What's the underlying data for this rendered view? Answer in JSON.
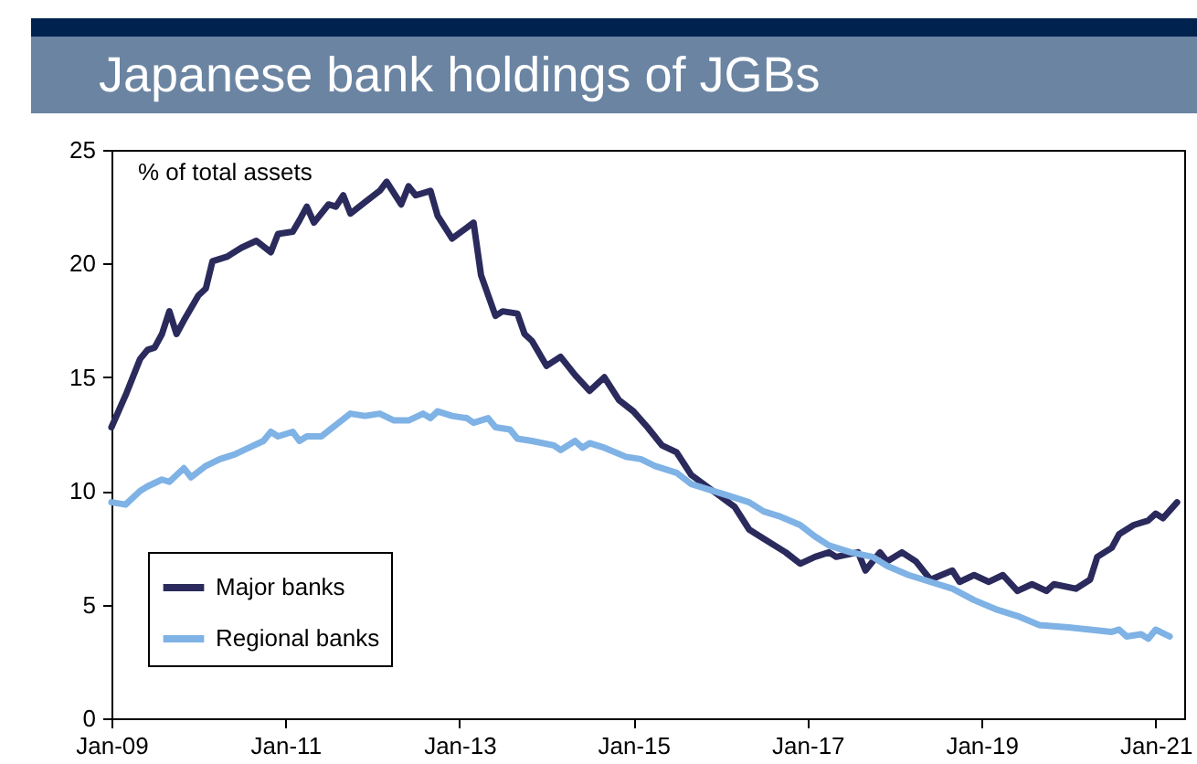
{
  "chart_data": {
    "type": "line",
    "title": "Japanese bank holdings of JGBs",
    "ylabel": "% of total assets",
    "xlim": [
      "2009-01",
      "2021-05"
    ],
    "ylim": [
      0,
      25
    ],
    "yticks": [
      0,
      5,
      10,
      15,
      20,
      25
    ],
    "xticks": [
      {
        "value": "2009-01",
        "label": "Jan-09"
      },
      {
        "value": "2011-01",
        "label": "Jan-11"
      },
      {
        "value": "2013-01",
        "label": "Jan-13"
      },
      {
        "value": "2015-01",
        "label": "Jan-15"
      },
      {
        "value": "2017-01",
        "label": "Jan-17"
      },
      {
        "value": "2019-01",
        "label": "Jan-19"
      },
      {
        "value": "2021-01",
        "label": "Jan-21"
      }
    ],
    "grid": false,
    "legend": "bottom left",
    "line_style": "solid",
    "marker": "none",
    "series": [
      {
        "name": "Major banks",
        "color": "#2b2a5c",
        "x": [
          "2009-01",
          "2009-03",
          "2009-05",
          "2009-06",
          "2009-07",
          "2009-08",
          "2009-09",
          "2009-10",
          "2009-11",
          "2010-01",
          "2010-02",
          "2010-03",
          "2010-05",
          "2010-07",
          "2010-09",
          "2010-11",
          "2010-12",
          "2011-02",
          "2011-03",
          "2011-04",
          "2011-05",
          "2011-07",
          "2011-08",
          "2011-09",
          "2011-10",
          "2011-12",
          "2012-02",
          "2012-03",
          "2012-05",
          "2012-06",
          "2012-07",
          "2012-09",
          "2012-10",
          "2012-12",
          "2013-03",
          "2013-04",
          "2013-06",
          "2013-07",
          "2013-09",
          "2013-10",
          "2013-11",
          "2014-01",
          "2014-03",
          "2014-05",
          "2014-07",
          "2014-09",
          "2014-11",
          "2015-01",
          "2015-03",
          "2015-05",
          "2015-07",
          "2015-09",
          "2015-12",
          "2016-03",
          "2016-05",
          "2016-07",
          "2016-10",
          "2016-12",
          "2017-02",
          "2017-04",
          "2017-05",
          "2017-08",
          "2017-09",
          "2017-11",
          "2017-12",
          "2018-02",
          "2018-04",
          "2018-06",
          "2018-09",
          "2018-10",
          "2018-12",
          "2019-02",
          "2019-04",
          "2019-06",
          "2019-08",
          "2019-10",
          "2019-11",
          "2020-02",
          "2020-04",
          "2020-05",
          "2020-07",
          "2020-08",
          "2020-10",
          "2020-12",
          "2021-01",
          "2021-02",
          "2021-04"
        ],
        "values": [
          12.8,
          14.2,
          15.8,
          16.2,
          16.3,
          16.9,
          17.9,
          16.9,
          17.5,
          18.6,
          18.9,
          20.1,
          20.3,
          20.7,
          21.0,
          20.5,
          21.3,
          21.4,
          21.9,
          22.5,
          21.8,
          22.6,
          22.5,
          23.0,
          22.2,
          22.7,
          23.2,
          23.6,
          22.6,
          23.4,
          23.0,
          23.2,
          22.1,
          21.1,
          21.8,
          19.5,
          17.7,
          17.9,
          17.8,
          16.9,
          16.6,
          15.5,
          15.9,
          15.1,
          14.4,
          15.0,
          14.0,
          13.5,
          12.8,
          12.0,
          11.7,
          10.7,
          10.0,
          9.3,
          8.3,
          7.9,
          7.3,
          6.8,
          7.1,
          7.3,
          7.1,
          7.3,
          6.5,
          7.3,
          6.9,
          7.3,
          6.9,
          6.1,
          6.5,
          6.0,
          6.3,
          6.0,
          6.3,
          5.6,
          5.9,
          5.6,
          5.9,
          5.7,
          6.1,
          7.1,
          7.5,
          8.1,
          8.5,
          8.7,
          9.0,
          8.8,
          9.5
        ]
      },
      {
        "name": "Regional banks",
        "color": "#7fb2e5",
        "x": [
          "2009-01",
          "2009-03",
          "2009-05",
          "2009-06",
          "2009-08",
          "2009-09",
          "2009-11",
          "2009-12",
          "2010-02",
          "2010-04",
          "2010-06",
          "2010-08",
          "2010-10",
          "2010-11",
          "2010-12",
          "2011-02",
          "2011-03",
          "2011-04",
          "2011-06",
          "2011-08",
          "2011-10",
          "2011-12",
          "2012-02",
          "2012-04",
          "2012-06",
          "2012-08",
          "2012-09",
          "2012-10",
          "2012-12",
          "2013-02",
          "2013-03",
          "2013-05",
          "2013-06",
          "2013-08",
          "2013-09",
          "2013-11",
          "2014-02",
          "2014-03",
          "2014-05",
          "2014-06",
          "2014-07",
          "2014-09",
          "2014-12",
          "2015-02",
          "2015-04",
          "2015-07",
          "2015-09",
          "2015-12",
          "2016-02",
          "2016-05",
          "2016-07",
          "2016-09",
          "2016-12",
          "2017-02",
          "2017-04",
          "2017-07",
          "2017-10",
          "2017-12",
          "2018-03",
          "2018-06",
          "2018-09",
          "2018-12",
          "2019-03",
          "2019-06",
          "2019-09",
          "2020-01",
          "2020-04",
          "2020-07",
          "2020-08",
          "2020-09",
          "2020-11",
          "2020-12",
          "2021-01",
          "2021-03"
        ],
        "values": [
          9.5,
          9.4,
          10.0,
          10.2,
          10.5,
          10.4,
          11.0,
          10.6,
          11.1,
          11.4,
          11.6,
          11.9,
          12.2,
          12.6,
          12.4,
          12.6,
          12.2,
          12.4,
          12.4,
          12.9,
          13.4,
          13.3,
          13.4,
          13.1,
          13.1,
          13.4,
          13.2,
          13.5,
          13.3,
          13.2,
          13.0,
          13.2,
          12.8,
          12.7,
          12.3,
          12.2,
          12.0,
          11.8,
          12.2,
          11.9,
          12.1,
          11.9,
          11.5,
          11.4,
          11.1,
          10.8,
          10.3,
          10.0,
          9.8,
          9.5,
          9.1,
          8.9,
          8.5,
          8.0,
          7.6,
          7.3,
          7.1,
          6.7,
          6.3,
          6.0,
          5.7,
          5.2,
          4.8,
          4.5,
          4.1,
          4.0,
          3.9,
          3.8,
          3.9,
          3.6,
          3.7,
          3.5,
          3.9,
          3.6
        ]
      }
    ]
  }
}
